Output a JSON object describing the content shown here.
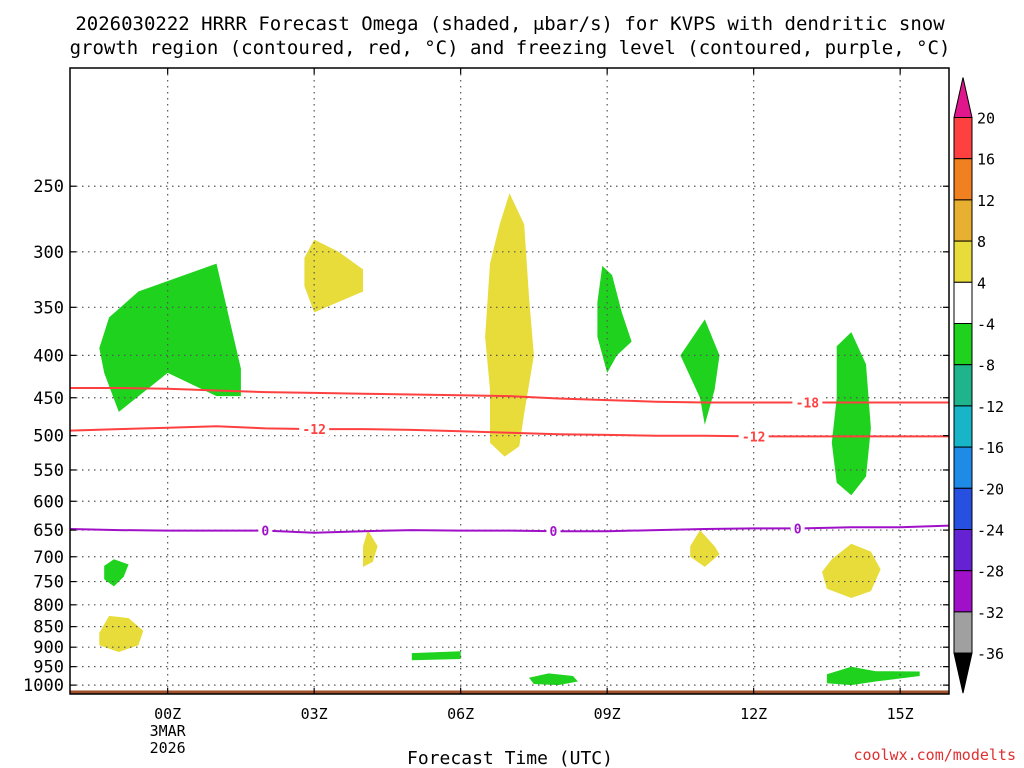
{
  "chart_data": {
    "type": "heatmap",
    "title_line1": "2026030222 HRRR Forecast Omega (shaded, μbar/s) for KVPS with dendritic snow",
    "title_line2": "growth region (contoured, red, °C) and freezing level (contoured, purple, °C)",
    "xlabel": "Forecast Time (UTC)",
    "ylabel": "",
    "credit": "coolwx.com/modelts",
    "xlim": [
      -2,
      16
    ],
    "y_scale": "log-pressure",
    "ylim_hpa": [
      1025,
      180
    ],
    "x_ticks": [
      {
        "value": 0,
        "label": "00Z",
        "sub1": "3MAR",
        "sub2": "2026"
      },
      {
        "value": 3,
        "label": "03Z"
      },
      {
        "value": 6,
        "label": "06Z"
      },
      {
        "value": 9,
        "label": "09Z"
      },
      {
        "value": 12,
        "label": "12Z"
      },
      {
        "value": 15,
        "label": "15Z"
      }
    ],
    "y_ticks": [
      {
        "value": 250,
        "label": "250"
      },
      {
        "value": 300,
        "label": "300"
      },
      {
        "value": 350,
        "label": "350"
      },
      {
        "value": 400,
        "label": "400"
      },
      {
        "value": 450,
        "label": "450"
      },
      {
        "value": 500,
        "label": "500"
      },
      {
        "value": 550,
        "label": "550"
      },
      {
        "value": 600,
        "label": "600"
      },
      {
        "value": 650,
        "label": "650"
      },
      {
        "value": 700,
        "label": "700"
      },
      {
        "value": 750,
        "label": "750"
      },
      {
        "value": 800,
        "label": "800"
      },
      {
        "value": 850,
        "label": "850"
      },
      {
        "value": 900,
        "label": "900"
      },
      {
        "value": 950,
        "label": "950"
      },
      {
        "value": 1000,
        "label": "1000"
      }
    ],
    "ground_level_hpa": 1015,
    "ground_color": "#a0522d",
    "colorbar": {
      "boundaries": [
        "20",
        "16",
        "12",
        "8",
        "4",
        "-4",
        "-8",
        "-12",
        "-16",
        "-20",
        "-24",
        "-28",
        "-32",
        "-36"
      ],
      "bins": [
        {
          "range": "16 to 20",
          "color": "#ff4040"
        },
        {
          "range": "12 to 16",
          "color": "#f08020"
        },
        {
          "range": "8 to 12",
          "color": "#e8b030"
        },
        {
          "range": "4 to 8",
          "color": "#e8dc3a"
        },
        {
          "range": "-4 to 4",
          "color": "#ffffff"
        },
        {
          "range": "-8 to -4",
          "color": "#1ed21e"
        },
        {
          "range": "-12 to -8",
          "color": "#20b48c"
        },
        {
          "range": "-16 to -12",
          "color": "#18b4c8"
        },
        {
          "range": "-20 to -16",
          "color": "#1e8ce6"
        },
        {
          "range": "-24 to -20",
          "color": "#2850e0"
        },
        {
          "range": "-28 to -24",
          "color": "#6422d2"
        },
        {
          "range": "-32 to -28",
          "color": "#a010c8"
        },
        {
          "range": "-36 to -32",
          "color": "#a0a0a0"
        }
      ],
      "top_triangle_color": "#e0168c",
      "bottom_triangle_color": "#000000"
    },
    "omega_regions": [
      {
        "name": "upward-region-1",
        "color": "#1ed21e",
        "points": [
          [
            -1.3,
            420
          ],
          [
            -1.4,
            392
          ],
          [
            -1.2,
            360
          ],
          [
            -0.6,
            335
          ],
          [
            1.0,
            310
          ],
          [
            1.5,
            415
          ],
          [
            1.5,
            448
          ],
          [
            1.0,
            448
          ],
          [
            0,
            420
          ],
          [
            -1,
            468
          ]
        ]
      },
      {
        "name": "downward-region-1",
        "color": "#e8dc3a",
        "points": [
          [
            2.8,
            305
          ],
          [
            3,
            290
          ],
          [
            3.5,
            300
          ],
          [
            4.0,
            315
          ],
          [
            4.0,
            335
          ],
          [
            3.0,
            355
          ],
          [
            2.8,
            330
          ]
        ]
      },
      {
        "name": "downward-region-2",
        "color": "#e8dc3a",
        "points": [
          [
            7.0,
            255
          ],
          [
            7.3,
            278
          ],
          [
            7.4,
            340
          ],
          [
            7.5,
            400
          ],
          [
            7.3,
            470
          ],
          [
            7.2,
            515
          ],
          [
            6.9,
            530
          ],
          [
            6.6,
            510
          ],
          [
            6.6,
            440
          ],
          [
            6.5,
            380
          ],
          [
            6.6,
            310
          ],
          [
            6.8,
            278
          ]
        ]
      },
      {
        "name": "upward-region-2",
        "color": "#1ed21e",
        "points": [
          [
            8.8,
            345
          ],
          [
            8.9,
            312
          ],
          [
            9.1,
            320
          ],
          [
            9.3,
            355
          ],
          [
            9.5,
            385
          ],
          [
            9.2,
            400
          ],
          [
            9.0,
            420
          ],
          [
            8.8,
            380
          ]
        ]
      },
      {
        "name": "upward-region-3",
        "color": "#1ed21e",
        "points": [
          [
            10.5,
            400
          ],
          [
            11.0,
            362
          ],
          [
            11.3,
            400
          ],
          [
            11.2,
            440
          ],
          [
            11.0,
            485
          ],
          [
            10.9,
            450
          ]
        ]
      },
      {
        "name": "upward-region-4",
        "color": "#1ed21e",
        "points": [
          [
            13.7,
            390
          ],
          [
            14,
            375
          ],
          [
            14.3,
            410
          ],
          [
            14.4,
            490
          ],
          [
            14.3,
            560
          ],
          [
            14.0,
            590
          ],
          [
            13.7,
            570
          ],
          [
            13.6,
            510
          ],
          [
            13.7,
            450
          ]
        ]
      },
      {
        "name": "downward-region-3",
        "color": "#e8dc3a",
        "points": [
          [
            4.0,
            680
          ],
          [
            4.1,
            650
          ],
          [
            4.3,
            680
          ],
          [
            4.2,
            710
          ],
          [
            4.0,
            720
          ]
        ]
      },
      {
        "name": "downward-region-4",
        "color": "#e8dc3a",
        "points": [
          [
            10.7,
            680
          ],
          [
            10.9,
            650
          ],
          [
            11.2,
            680
          ],
          [
            11.3,
            695
          ],
          [
            11.0,
            720
          ],
          [
            10.7,
            700
          ]
        ]
      },
      {
        "name": "downward-region-5",
        "color": "#e8dc3a",
        "points": [
          [
            13.4,
            730
          ],
          [
            13.6,
            705
          ],
          [
            14.0,
            675
          ],
          [
            14.4,
            690
          ],
          [
            14.6,
            725
          ],
          [
            14.4,
            770
          ],
          [
            14.0,
            785
          ],
          [
            13.5,
            765
          ]
        ]
      },
      {
        "name": "upward-region-5",
        "color": "#1ed21e",
        "points": [
          [
            -1.3,
            718
          ],
          [
            -1.1,
            705
          ],
          [
            -0.8,
            715
          ],
          [
            -0.9,
            740
          ],
          [
            -1.1,
            760
          ],
          [
            -1.3,
            745
          ]
        ]
      },
      {
        "name": "downward-region-6",
        "color": "#e8dc3a",
        "points": [
          [
            -1.4,
            865
          ],
          [
            -1.2,
            825
          ],
          [
            -0.8,
            830
          ],
          [
            -0.5,
            860
          ],
          [
            -0.6,
            895
          ],
          [
            -1.0,
            912
          ],
          [
            -1.4,
            895
          ]
        ]
      },
      {
        "name": "upward-region-6",
        "color": "#1ed21e",
        "points": [
          [
            5.0,
            915
          ],
          [
            6.0,
            910
          ],
          [
            6.0,
            930
          ],
          [
            5.0,
            933
          ]
        ]
      },
      {
        "name": "upward-region-7",
        "color": "#1ed21e",
        "points": [
          [
            7.4,
            980
          ],
          [
            7.8,
            968
          ],
          [
            8.3,
            975
          ],
          [
            8.4,
            990
          ],
          [
            8.0,
            1000
          ],
          [
            7.5,
            997
          ]
        ]
      },
      {
        "name": "upward-region-8",
        "color": "#1ed21e",
        "points": [
          [
            13.5,
            970
          ],
          [
            14.0,
            950
          ],
          [
            14.5,
            962
          ],
          [
            15.4,
            963
          ],
          [
            15.4,
            975
          ],
          [
            14.5,
            990
          ],
          [
            14.0,
            1000
          ],
          [
            13.5,
            995
          ]
        ]
      }
    ],
    "contours": [
      {
        "name": "dgz-upper",
        "color": "#ff4040",
        "label": "-18",
        "points": [
          [
            -2,
            438
          ],
          [
            -1,
            438
          ],
          [
            0,
            439
          ],
          [
            1,
            441
          ],
          [
            2,
            443
          ],
          [
            3,
            444
          ],
          [
            4,
            445
          ],
          [
            5,
            446
          ],
          [
            6,
            447
          ],
          [
            7,
            448
          ],
          [
            8,
            451
          ],
          [
            9,
            453
          ],
          [
            10,
            455
          ],
          [
            11,
            456
          ],
          [
            12,
            456
          ],
          [
            13,
            456
          ],
          [
            14,
            456
          ],
          [
            15,
            456
          ],
          [
            16,
            456
          ]
        ],
        "label_positions": [
          13.1
        ]
      },
      {
        "name": "dgz-lower",
        "color": "#ff4040",
        "label": "-12",
        "points": [
          [
            -2,
            493
          ],
          [
            -1,
            491
          ],
          [
            0,
            489
          ],
          [
            1,
            487
          ],
          [
            2,
            490
          ],
          [
            3,
            491
          ],
          [
            4,
            491
          ],
          [
            5,
            492
          ],
          [
            6,
            494
          ],
          [
            7,
            496
          ],
          [
            8,
            498
          ],
          [
            9,
            499
          ],
          [
            10,
            500
          ],
          [
            11,
            500
          ],
          [
            12,
            501
          ],
          [
            13,
            501
          ],
          [
            14,
            501
          ],
          [
            15,
            501
          ],
          [
            16,
            501
          ]
        ],
        "label_positions": [
          3.0,
          12.0
        ]
      },
      {
        "name": "freezing-level",
        "color": "#a010c8",
        "label": "0",
        "points": [
          [
            -2,
            648
          ],
          [
            -1,
            650
          ],
          [
            0,
            651
          ],
          [
            1,
            651
          ],
          [
            2,
            651
          ],
          [
            3,
            655
          ],
          [
            4,
            652
          ],
          [
            5,
            650
          ],
          [
            6,
            651
          ],
          [
            7,
            651
          ],
          [
            8,
            652
          ],
          [
            9,
            652
          ],
          [
            10,
            650
          ],
          [
            11,
            648
          ],
          [
            12,
            647
          ],
          [
            13,
            647
          ],
          [
            14,
            645
          ],
          [
            15,
            645
          ],
          [
            16,
            642
          ]
        ],
        "label_positions": [
          2.0,
          7.9,
          12.9
        ]
      }
    ]
  }
}
